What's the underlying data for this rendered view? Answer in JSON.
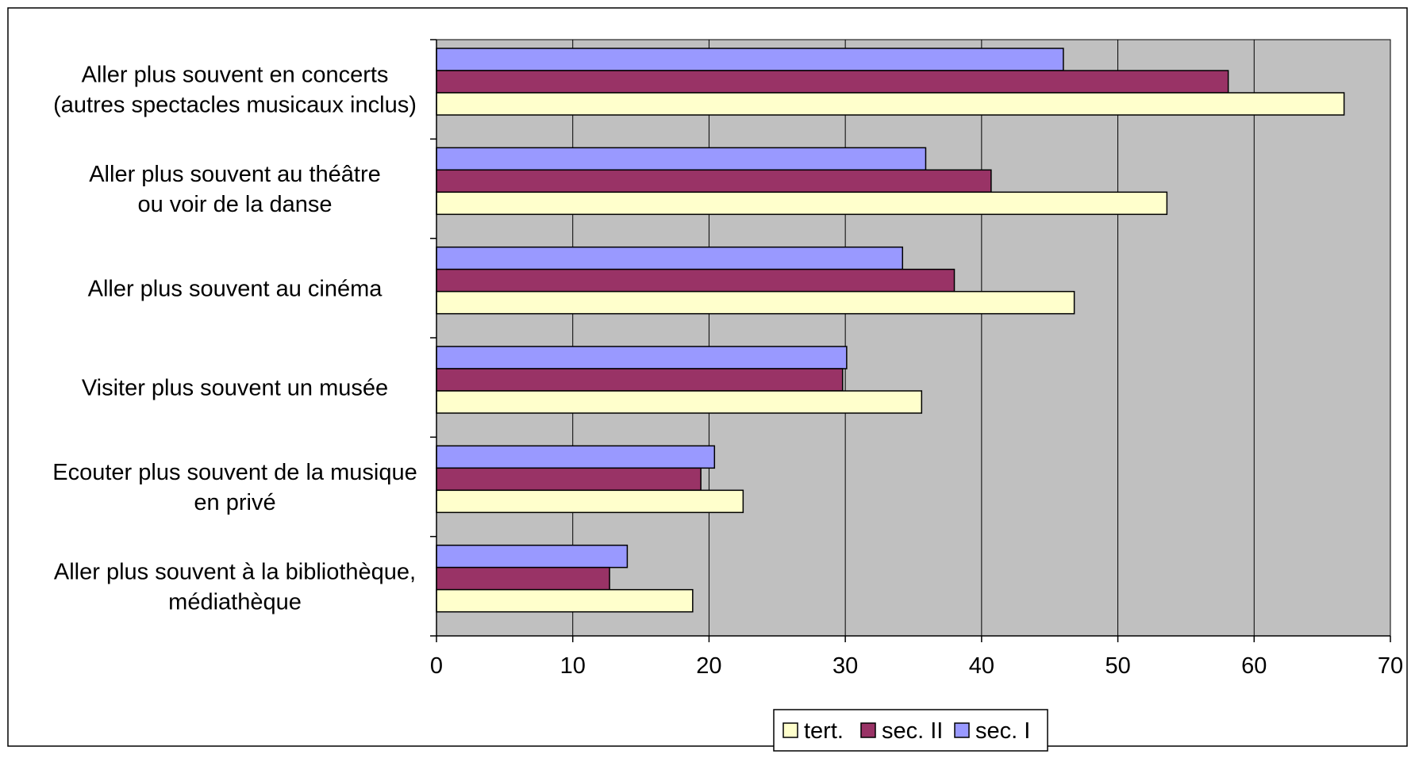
{
  "chart_data": {
    "type": "bar",
    "orientation": "horizontal",
    "categories": [
      [
        "Aller plus souvent en concerts",
        "(autres spectacles musicaux inclus)"
      ],
      [
        "Aller plus souvent au théâtre",
        "ou voir de la danse"
      ],
      [
        "Aller plus souvent au cinéma"
      ],
      [
        "Visiter plus souvent un musée"
      ],
      [
        "Ecouter plus souvent de la musique",
        "en privé"
      ],
      [
        "Aller plus souvent à la bibliothèque,",
        "médiathèque"
      ]
    ],
    "series": [
      {
        "name": "sec. I",
        "color": "#9999ff",
        "values": [
          46,
          35.9,
          34.2,
          30.1,
          20.4,
          14
        ]
      },
      {
        "name": "sec. II",
        "color": "#993366",
        "values": [
          58.1,
          40.7,
          38,
          29.8,
          19.4,
          12.7
        ]
      },
      {
        "name": "tert.",
        "color": "#ffffcc",
        "values": [
          66.6,
          53.6,
          46.8,
          35.6,
          22.5,
          18.8
        ]
      }
    ],
    "xlim": [
      0,
      70
    ],
    "xticks": [
      0,
      10,
      20,
      30,
      40,
      50,
      60,
      70
    ],
    "grid": "vertical",
    "plot_background": "#c0c0c0",
    "legend": {
      "position": "bottom",
      "order": [
        "tert.",
        "sec. II",
        "sec. I"
      ]
    }
  }
}
